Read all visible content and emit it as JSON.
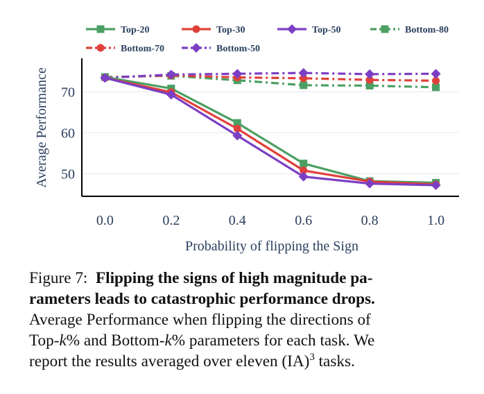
{
  "chart_data": {
    "type": "line",
    "title": "",
    "xlabel": "Probability of flipping the Sign",
    "ylabel": "Average Performance",
    "x": [
      0.0,
      0.2,
      0.4,
      0.6,
      0.8,
      1.0
    ],
    "x_tick_labels": [
      "0.0",
      "0.2",
      "0.4",
      "0.6",
      "0.8",
      "1.0"
    ],
    "y_ticks": [
      50,
      60,
      70
    ],
    "xlim": [
      -0.07,
      1.07
    ],
    "ylim": [
      44.5,
      77.5
    ],
    "grid": true,
    "legend_position": "top",
    "series": [
      {
        "name": "Top-20",
        "color": "#4c9f63",
        "dash": "solid",
        "marker": "square",
        "values": [
          73.6,
          70.8,
          62.4,
          52.5,
          48.2,
          47.8
        ]
      },
      {
        "name": "Top-30",
        "color": "#e0403a",
        "dash": "solid",
        "marker": "circle",
        "values": [
          73.4,
          69.9,
          61.0,
          50.8,
          48.1,
          47.4
        ]
      },
      {
        "name": "Top-50",
        "color": "#7b3fc4",
        "dash": "solid",
        "marker": "diamond",
        "values": [
          73.4,
          69.3,
          59.3,
          49.3,
          47.6,
          47.2
        ]
      },
      {
        "name": "Bottom-80",
        "color": "#4c9f63",
        "dash": "dashdot",
        "marker": "square",
        "values": [
          73.6,
          73.9,
          72.8,
          71.6,
          71.5,
          71.1
        ]
      },
      {
        "name": "Bottom-70",
        "color": "#e0403a",
        "dash": "dashdot",
        "marker": "circle",
        "values": [
          73.5,
          74.0,
          73.5,
          73.3,
          72.9,
          72.7
        ]
      },
      {
        "name": "Bottom-50",
        "color": "#7b3fc4",
        "dash": "dashdot",
        "marker": "diamond",
        "values": [
          73.4,
          74.2,
          74.4,
          74.6,
          74.3,
          74.4
        ]
      }
    ]
  },
  "caption": {
    "label": "Figure 7:",
    "bold_line1": "Flipping the signs of high magnitude pa-",
    "bold_line2": "rameters leads to catastrophic performance drops.",
    "line3": "Average Performance when flipping the directions of",
    "line4_a": "Top-",
    "line4_k1": "k",
    "line4_b": "% and Bottom-",
    "line4_k2": "k",
    "line4_c": "% parameters for each task. We",
    "line5_a": "report the results averaged over eleven (IA)",
    "line5_sup": "3",
    "line5_b": " tasks."
  }
}
